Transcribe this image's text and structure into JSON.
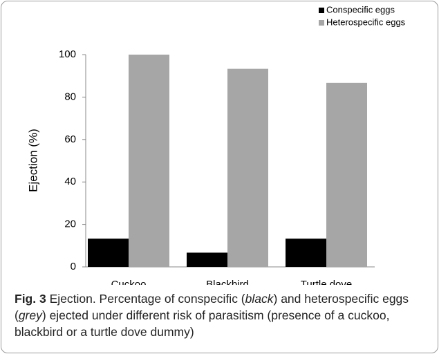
{
  "chart_data": {
    "type": "bar",
    "ylabel": "Ejection (%)",
    "categories": [
      "Cuckoo",
      "Blackbird",
      "Turtle dove"
    ],
    "series": [
      {
        "name": "Conspecific eggs",
        "color": "#000000",
        "values": [
          13.3,
          6.7,
          13.3
        ]
      },
      {
        "name": "Heterospecific eggs",
        "color": "#a6a6a6",
        "values": [
          100,
          93.3,
          86.7
        ]
      }
    ],
    "ylim": [
      0,
      100
    ],
    "yticks": [
      0,
      20,
      40,
      60,
      80,
      100
    ],
    "grid": false,
    "legend": "top-right"
  },
  "caption": [
    {
      "text": "Fig. 3",
      "style": "bold"
    },
    {
      "text": " Ejection. Percentage of conspecific (",
      "style": "normal"
    },
    {
      "text": "black",
      "style": "italic"
    },
    {
      "text": ") and heterospecific eggs (",
      "style": "normal"
    },
    {
      "text": "grey",
      "style": "italic"
    },
    {
      "text": ") ejected under different risk of parasitism (presence of a cuckoo, blackbird or a turtle dove dummy)",
      "style": "normal"
    }
  ]
}
